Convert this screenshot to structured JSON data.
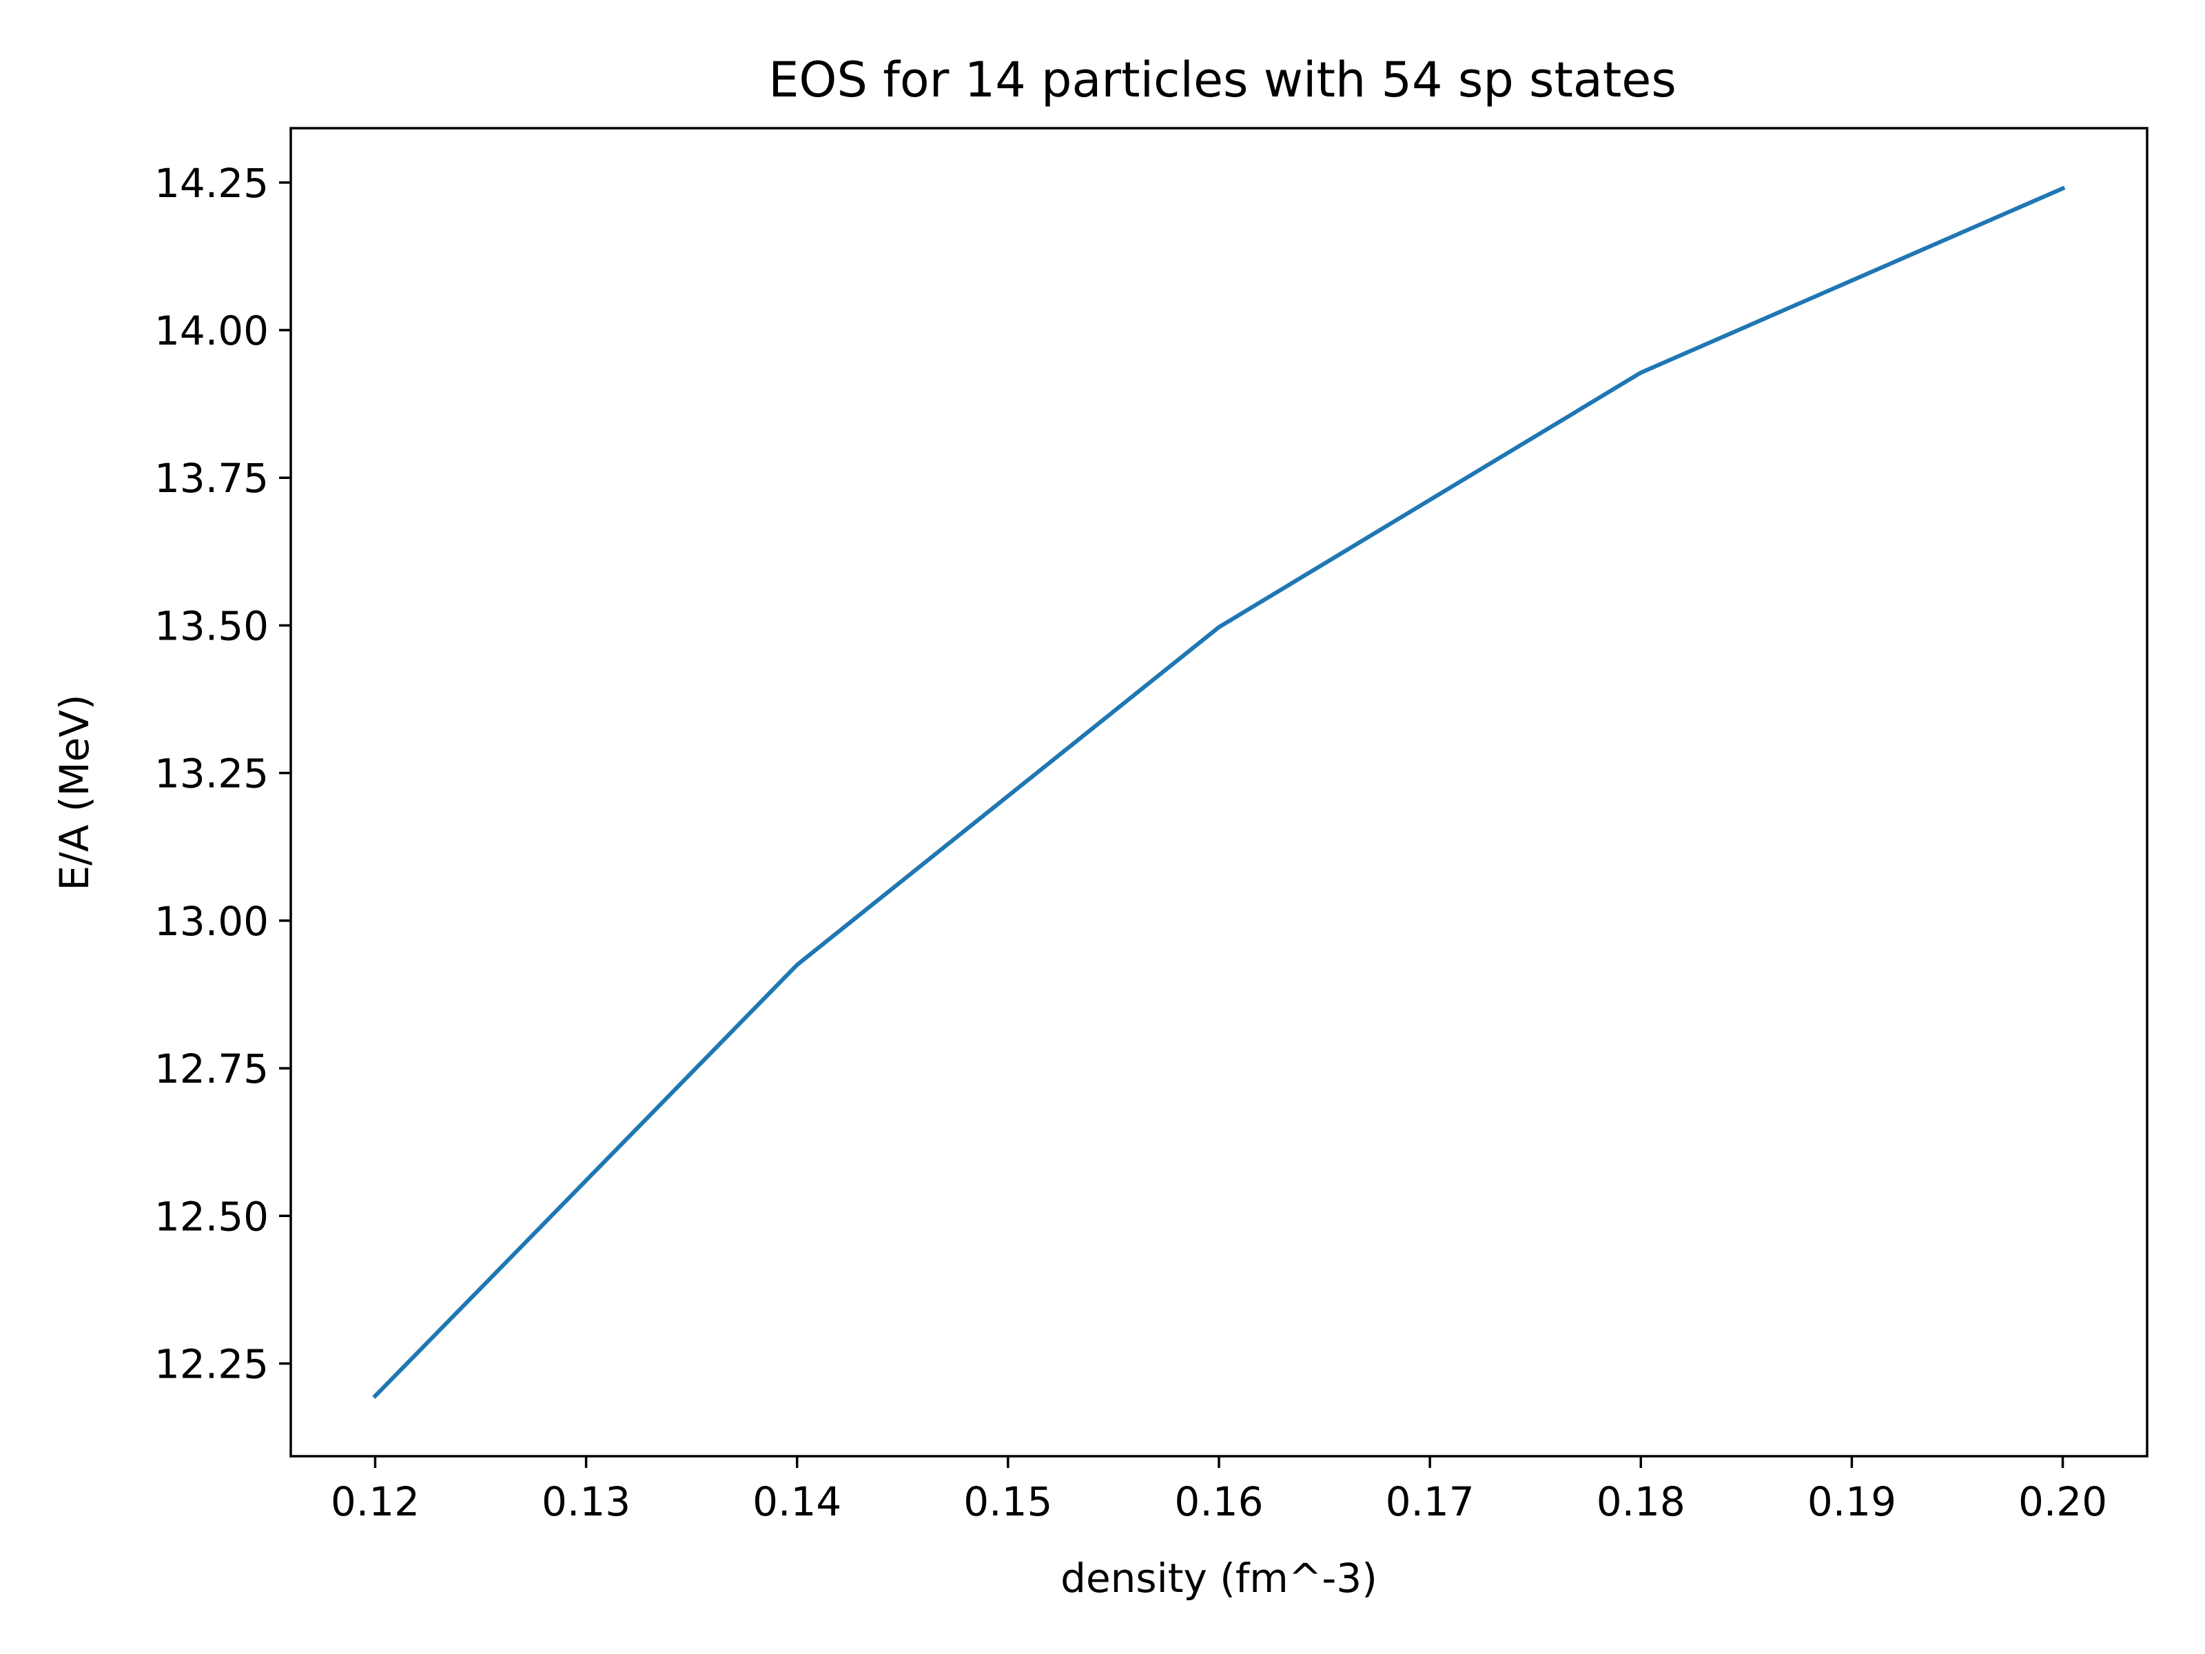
{
  "chart_data": {
    "type": "line",
    "title": "EOS for 14 particles with 54 sp states",
    "xlabel": "density (fm^-3)",
    "ylabel": "E/A (MeV)",
    "x": [
      0.12,
      0.14,
      0.16,
      0.18,
      0.2
    ],
    "series": [
      {
        "color": "#1f77b4",
        "values": [
          12.195,
          12.925,
          13.497,
          13.928,
          14.24
        ]
      }
    ],
    "xlim": [
      0.116,
      0.204
    ],
    "ylim": [
      12.093,
      14.342
    ],
    "xticks": [
      "0.12",
      "0.13",
      "0.14",
      "0.15",
      "0.16",
      "0.17",
      "0.18",
      "0.19",
      "0.20"
    ],
    "xtick_values": [
      0.12,
      0.13,
      0.14,
      0.15,
      0.16,
      0.17,
      0.18,
      0.19,
      0.2
    ],
    "yticks": [
      "12.25",
      "12.50",
      "12.75",
      "13.00",
      "13.25",
      "13.50",
      "13.75",
      "14.00",
      "14.25"
    ],
    "ytick_values": [
      12.25,
      12.5,
      12.75,
      13.0,
      13.25,
      13.5,
      13.75,
      14.0,
      14.25
    ],
    "grid": false,
    "legend": "none"
  }
}
